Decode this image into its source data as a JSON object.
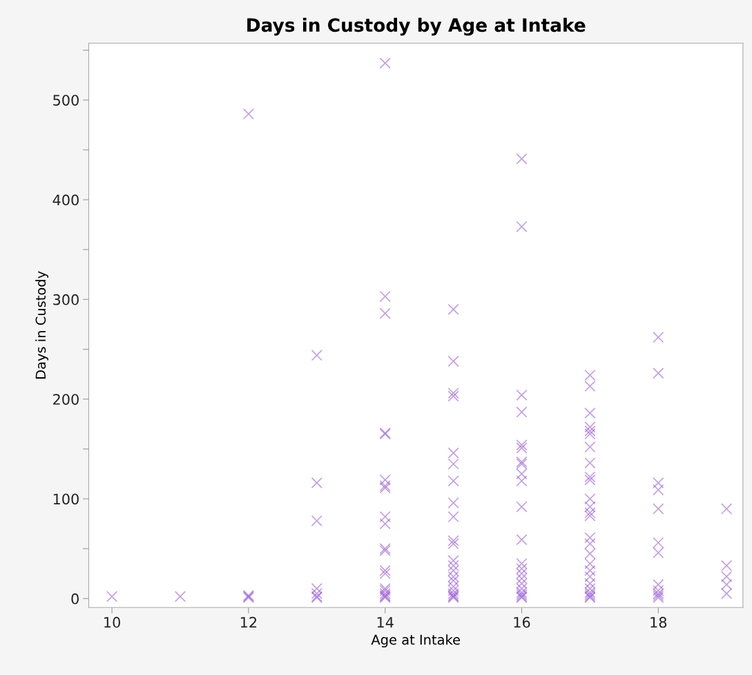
{
  "chart_data": {
    "type": "scatter",
    "title": "Days in Custody by Age at Intake",
    "xlabel": "Age at Intake",
    "ylabel": "Days in Custody",
    "marker": "cross",
    "grid": false,
    "xlim": [
      9.66,
      19.24
    ],
    "xticks": [
      10,
      12,
      14,
      16,
      18
    ],
    "ylim": [
      -9,
      557
    ],
    "yticks": [
      0,
      {
        "value": 50,
        "label": null
      },
      100,
      {
        "value": 150,
        "label": null
      },
      200,
      {
        "value": 250,
        "label": null
      },
      300,
      {
        "value": 350,
        "label": null
      },
      400,
      {
        "value": 450,
        "label": null
      },
      500,
      {
        "value": 550,
        "label": null
      }
    ],
    "series": [
      {
        "color": "#9b5fd6",
        "x": [
          10,
          11,
          12,
          12,
          12,
          12,
          13,
          13,
          13,
          13,
          13,
          13,
          13,
          14,
          14,
          14,
          14,
          14,
          14,
          14,
          14,
          14,
          14,
          14,
          14,
          14,
          14,
          14,
          14,
          14,
          14,
          14,
          14,
          15,
          15,
          15,
          15,
          15,
          15,
          15,
          15,
          15,
          15,
          15,
          15,
          15,
          15,
          15,
          15,
          15,
          15,
          15,
          15,
          15,
          15,
          16,
          16,
          16,
          16,
          16,
          16,
          16,
          16,
          16,
          16,
          16,
          16,
          16,
          16,
          16,
          16,
          16,
          16,
          16,
          16,
          16,
          16,
          17,
          17,
          17,
          17,
          17,
          17,
          17,
          17,
          17,
          17,
          17,
          17,
          17,
          17,
          17,
          17,
          17,
          17,
          17,
          17,
          17,
          17,
          17,
          17,
          17,
          17,
          18,
          18,
          18,
          18,
          18,
          18,
          18,
          18,
          18,
          18,
          18,
          18,
          19,
          19,
          19,
          19,
          19
        ],
        "values": [
          2,
          2,
          486,
          3,
          2,
          1,
          244,
          116,
          78,
          10,
          5,
          2,
          1,
          537,
          303,
          286,
          166,
          165,
          119,
          113,
          111,
          82,
          75,
          50,
          48,
          28,
          25,
          10,
          8,
          5,
          3,
          2,
          1,
          290,
          238,
          206,
          203,
          146,
          135,
          118,
          96,
          82,
          58,
          55,
          38,
          33,
          28,
          22,
          18,
          12,
          8,
          5,
          3,
          2,
          1,
          441,
          373,
          204,
          187,
          154,
          151,
          137,
          135,
          125,
          118,
          92,
          59,
          35,
          30,
          25,
          20,
          15,
          10,
          6,
          4,
          2,
          1,
          224,
          213,
          186,
          172,
          168,
          165,
          152,
          136,
          122,
          119,
          100,
          92,
          86,
          83,
          61,
          55,
          45,
          35,
          28,
          22,
          15,
          10,
          6,
          4,
          2,
          1,
          262,
          226,
          116,
          109,
          90,
          56,
          46,
          14,
          8,
          5,
          3,
          1,
          90,
          33,
          22,
          14,
          5
        ]
      }
    ]
  }
}
